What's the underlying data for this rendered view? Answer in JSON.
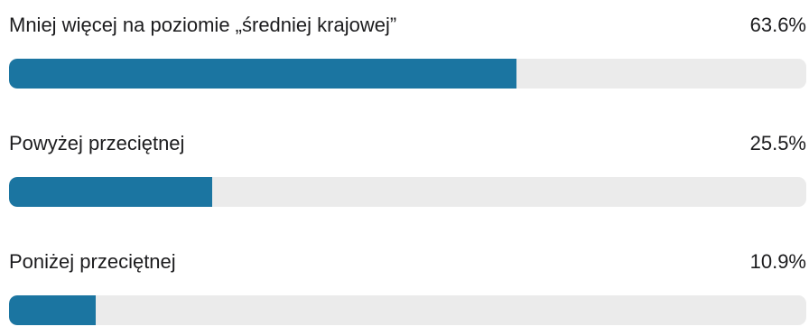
{
  "poll": {
    "options": [
      {
        "label": "Mniej więcej na poziomie „średniej krajowej”",
        "percent_text": "63.6%",
        "percent": 63.6
      },
      {
        "label": "Powyżej przeciętnej",
        "percent_text": "25.5%",
        "percent": 25.5
      },
      {
        "label": "Poniżej przeciętnej",
        "percent_text": "10.9%",
        "percent": 10.9
      }
    ]
  },
  "colors": {
    "bar_fill": "#1b75a1",
    "bar_track": "#ebebeb",
    "text": "#1c1c1e"
  }
}
